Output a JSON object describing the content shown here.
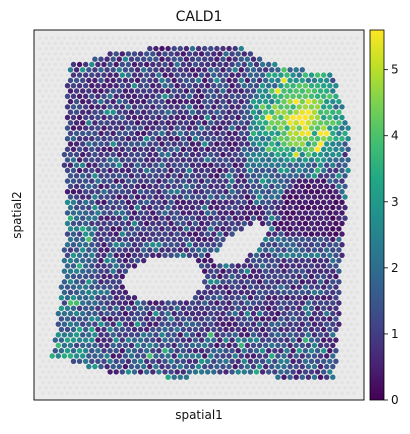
{
  "chart_data": {
    "type": "scatter",
    "title": "CALD1",
    "xlabel": "spatial1",
    "ylabel": "spatial2",
    "colormap": "viridis",
    "colorbar": {
      "min": 0,
      "max": 5.6,
      "ticks": [
        {
          "value": 0,
          "label": "0"
        },
        {
          "value": 1,
          "label": "1"
        },
        {
          "value": 2,
          "label": "2"
        },
        {
          "value": 3,
          "label": "3"
        },
        {
          "value": 4,
          "label": "4"
        },
        {
          "value": 5,
          "label": "5"
        }
      ]
    },
    "x_ticks": [],
    "y_ticks": [],
    "grid": false,
    "legend": "colorbar-right",
    "background_color": "#ebebeb",
    "note_values": "Per-spot expression on a hex spot grid; overall low expression (0-2) across the tissue with a high-expression cluster (3-5.6) toward the upper right and moderate (2-3) bands along the left and lower edges."
  }
}
